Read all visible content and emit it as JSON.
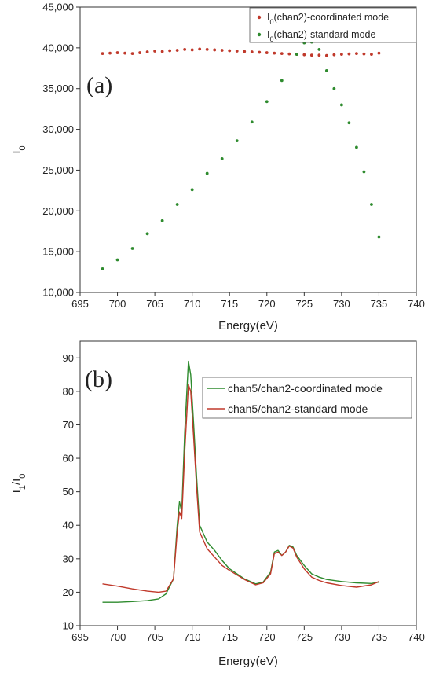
{
  "chart_data": [
    {
      "type": "scatter",
      "panel_label": "(a)",
      "xlabel": "Energy(eV)",
      "ylabel": "I₀",
      "xlim": [
        695,
        740
      ],
      "ylim": [
        10000,
        45000
      ],
      "x_ticks": [
        "695",
        "700",
        "705",
        "710",
        "715",
        "720",
        "725",
        "730",
        "735",
        "740"
      ],
      "y_ticks": [
        "10,000",
        "15,000",
        "20,000",
        "25,000",
        "30,000",
        "35,000",
        "40,000",
        "45,000"
      ],
      "grid": false,
      "legend_position": "top-right",
      "series": [
        {
          "name": "I₀(chan2)-coordinated mode",
          "color": "#c0392b",
          "x": [
            698,
            699,
            700,
            701,
            702,
            703,
            704,
            705,
            706,
            707,
            708,
            709,
            710,
            711,
            712,
            713,
            714,
            715,
            716,
            717,
            718,
            719,
            720,
            721,
            722,
            723,
            724,
            725,
            726,
            727,
            728,
            729,
            730,
            731,
            732,
            733,
            734,
            735
          ],
          "y": [
            39300,
            39350,
            39400,
            39350,
            39300,
            39400,
            39500,
            39600,
            39550,
            39650,
            39700,
            39800,
            39750,
            39850,
            39800,
            39750,
            39700,
            39650,
            39600,
            39550,
            39500,
            39450,
            39400,
            39350,
            39300,
            39250,
            39200,
            39150,
            39100,
            39100,
            39050,
            39150,
            39200,
            39250,
            39300,
            39250,
            39200,
            39350
          ]
        },
        {
          "name": "I₀(chan2)-standard mode",
          "color": "#2e8b2e",
          "x": [
            698,
            700,
            702,
            704,
            706,
            708,
            710,
            712,
            714,
            716,
            718,
            720,
            722,
            724,
            725,
            726,
            727,
            728,
            729,
            730,
            731,
            732,
            733,
            734,
            735
          ],
          "y": [
            12900,
            14000,
            15400,
            17200,
            18800,
            20800,
            22600,
            24600,
            26400,
            28600,
            30900,
            33400,
            36000,
            39200,
            40600,
            40700,
            39800,
            37200,
            35000,
            33000,
            30800,
            27800,
            24800,
            20800,
            16800
          ]
        }
      ]
    },
    {
      "type": "line",
      "panel_label": "(b)",
      "xlabel": "Energy(eV)",
      "ylabel": "I₁/I₀",
      "xlim": [
        695,
        740
      ],
      "ylim": [
        10,
        95
      ],
      "x_ticks": [
        "695",
        "700",
        "705",
        "710",
        "715",
        "720",
        "725",
        "730",
        "735",
        "740"
      ],
      "y_ticks": [
        "10",
        "20",
        "30",
        "40",
        "50",
        "60",
        "70",
        "80",
        "90"
      ],
      "grid": false,
      "legend_position": "top-right",
      "series": [
        {
          "name": "chan5/chan2-coordinated mode",
          "color": "#2e8b2e",
          "x": [
            698,
            700,
            702,
            704,
            705.5,
            706.5,
            707.5,
            708,
            708.3,
            708.6,
            709,
            709.5,
            709.8,
            710.2,
            710.6,
            711,
            712,
            713,
            714,
            715,
            717,
            718.5,
            719.5,
            720.5,
            721,
            721.5,
            722,
            722.5,
            723,
            723.5,
            724,
            725,
            726,
            727,
            728,
            730,
            732,
            734,
            735
          ],
          "y": [
            17,
            17,
            17.2,
            17.5,
            18,
            19.5,
            24,
            40,
            47,
            44,
            68,
            89,
            85,
            70,
            54,
            40,
            35,
            32.5,
            29.5,
            27,
            24,
            22.5,
            23,
            26,
            32,
            32.5,
            31,
            32,
            34,
            33.5,
            31,
            28,
            25.5,
            24.5,
            23.8,
            23.2,
            22.8,
            22.6,
            23
          ]
        },
        {
          "name": "chan5/chan2-standard mode",
          "color": "#c0392b",
          "x": [
            698,
            700,
            702,
            704,
            705.5,
            706.5,
            707.5,
            708,
            708.3,
            708.6,
            709,
            709.5,
            709.8,
            710.2,
            710.6,
            711,
            712,
            713,
            714,
            715,
            717,
            718.5,
            719.5,
            720.5,
            721,
            721.5,
            722,
            722.5,
            723,
            723.5,
            724,
            725,
            726,
            727,
            728,
            730,
            732,
            734,
            735
          ],
          "y": [
            22.5,
            21.8,
            21,
            20.3,
            20,
            20.3,
            24,
            38,
            44,
            42,
            62,
            82,
            80,
            66,
            51,
            38,
            33,
            30.5,
            28,
            26.5,
            23.8,
            22.2,
            22.8,
            25.5,
            31.5,
            32,
            31,
            32,
            33.8,
            33.2,
            30.5,
            27,
            24.5,
            23.5,
            22.8,
            22,
            21.5,
            22.2,
            23.2
          ]
        }
      ]
    }
  ]
}
